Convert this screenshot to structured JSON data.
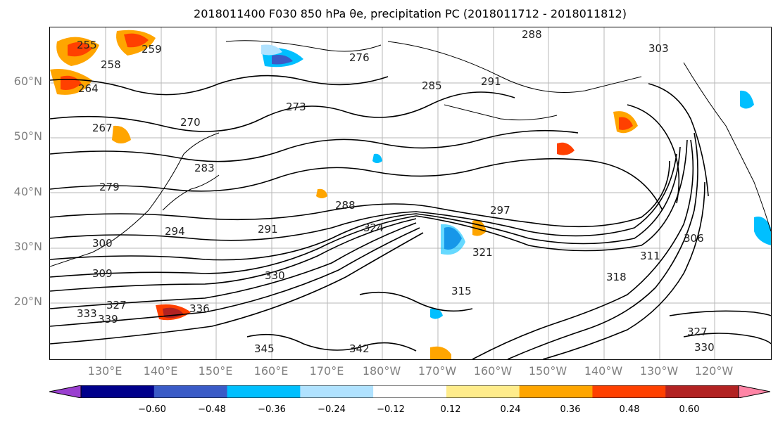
{
  "title": "2018011400 F030 850 hPa θe, precipitation PC (2018011712 - 2018011812)",
  "map": {
    "lat_labels": [
      "60°N",
      "50°N",
      "40°N",
      "30°N",
      "20°N"
    ],
    "lon_labels": [
      "130°E",
      "140°E",
      "150°E",
      "160°E",
      "170°E",
      "180°W",
      "170°W",
      "160°W",
      "150°W",
      "140°W",
      "130°W",
      "120°W"
    ],
    "contour_labels": [
      "255",
      "259",
      "258",
      "264",
      "267",
      "270",
      "273",
      "276",
      "279",
      "283",
      "285",
      "288",
      "288",
      "291",
      "291",
      "294",
      "297",
      "300",
      "303",
      "306",
      "309",
      "311",
      "315",
      "318",
      "321",
      "324",
      "327",
      "330",
      "333",
      "336",
      "339",
      "342",
      "345",
      "327",
      "330"
    ]
  },
  "colorbar": {
    "ticks": [
      "−0.60",
      "−0.48",
      "−0.36",
      "−0.24",
      "−0.12",
      "0.12",
      "0.24",
      "0.36",
      "0.48",
      "0.60"
    ],
    "colors": [
      "#9a3fd0",
      "#00008b",
      "#3a5bc7",
      "#00bfff",
      "#b0e2ff",
      "#ffffff",
      "#ffec8b",
      "#ffa500",
      "#ff4000",
      "#b22222",
      "#ff85a6"
    ]
  }
}
